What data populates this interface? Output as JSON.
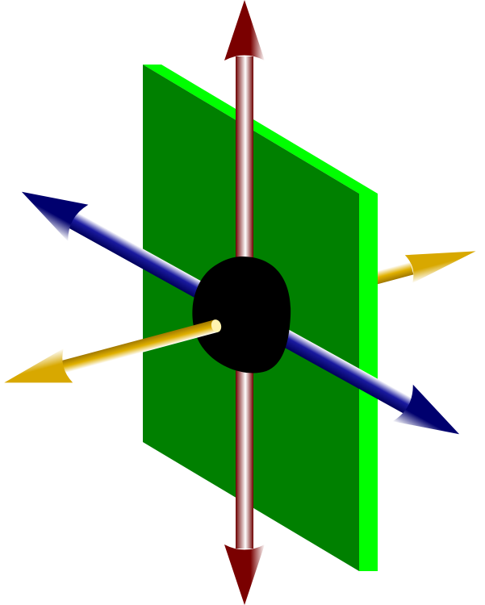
{
  "colors": {
    "background": "#ffffff",
    "plane_face": "#008000",
    "plane_edge": "#00ff00",
    "center": "#000000",
    "vertical_axis": "#7a0a0a",
    "vertical_axis_light": "#ffffff",
    "blue_axis": "#0a0a8c",
    "blue_axis_light": "#ffffff",
    "yellow_axis": "#d4a800",
    "yellow_axis_light": "#ffffff"
  },
  "elements": [
    "vertical-axis-arrow",
    "blue-axis-arrow",
    "yellow-axis-arrow",
    "green-plane",
    "center-blob"
  ]
}
